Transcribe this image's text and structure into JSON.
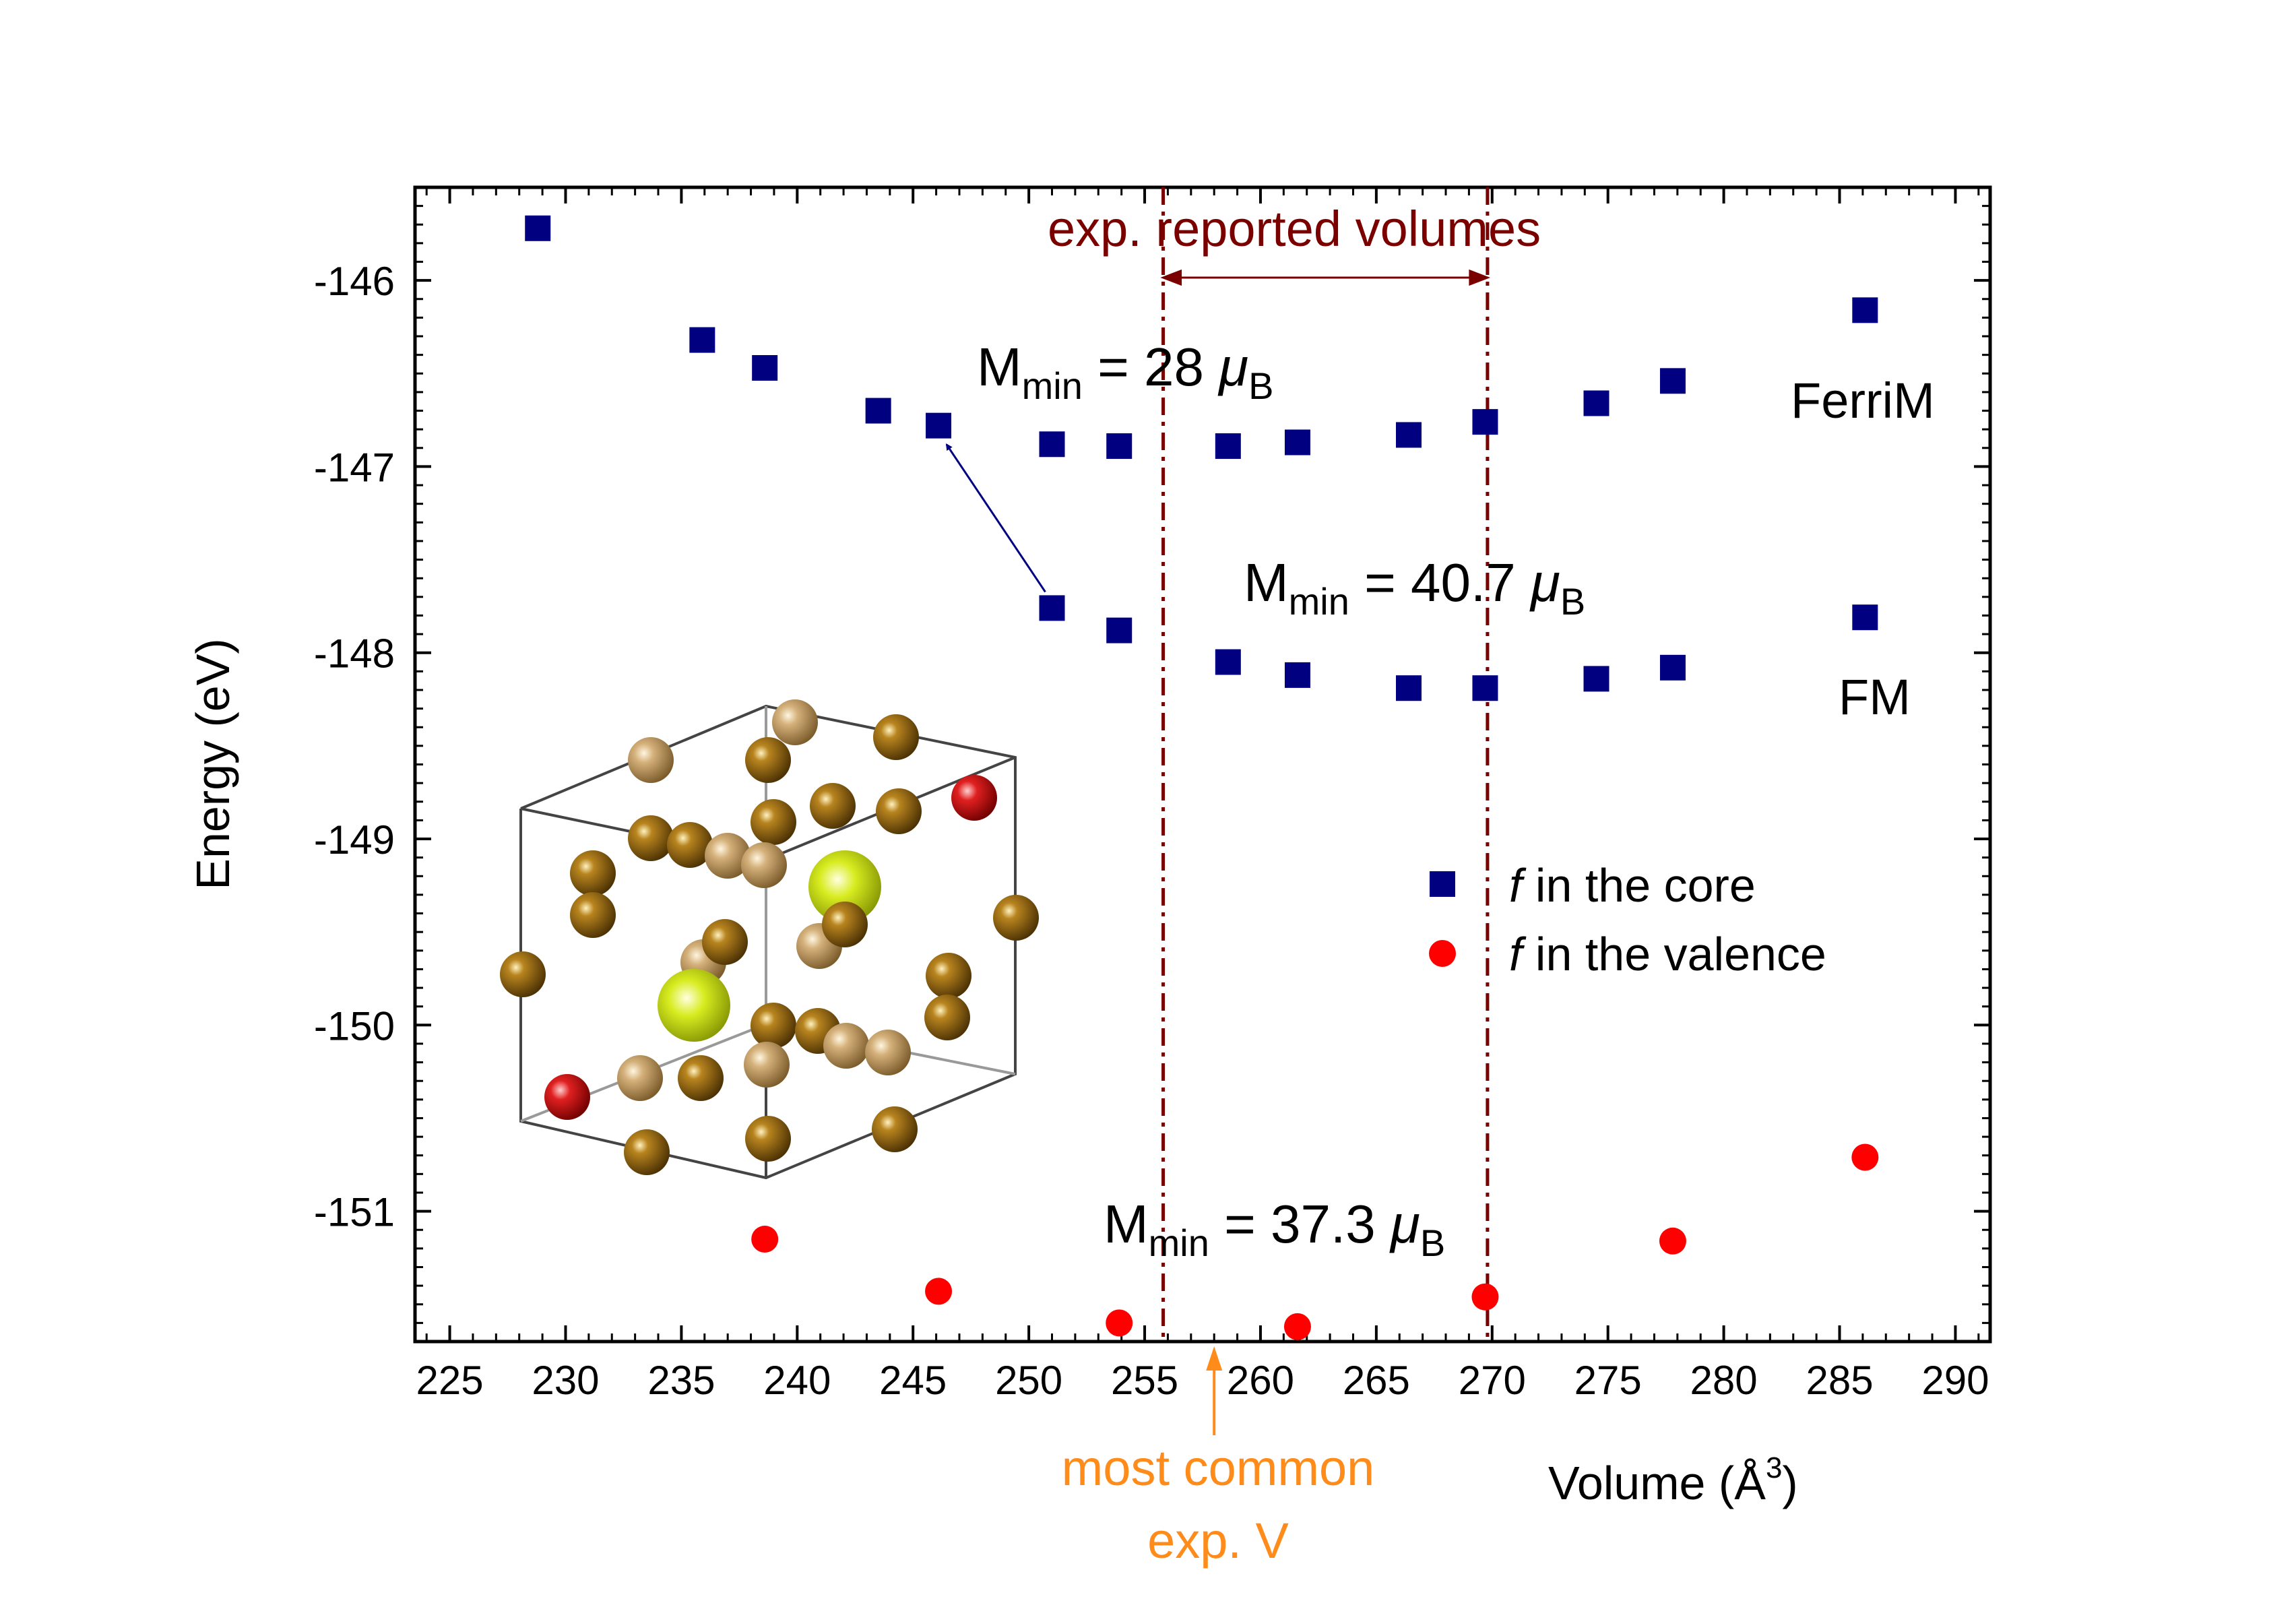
{
  "chart_data": {
    "type": "scatter",
    "title": "",
    "xlabel": "Volume (Å",
    "xlabel_sup": "3",
    "xlabel_close": ")",
    "ylabel": "Energy (eV)",
    "xlim": [
      223.5,
      291.5
    ],
    "ylim": [
      -151.7,
      -145.5
    ],
    "x_ticks": [
      225,
      230,
      235,
      240,
      245,
      250,
      255,
      260,
      265,
      270,
      275,
      280,
      285,
      290
    ],
    "y_ticks": [
      -146,
      -147,
      -148,
      -149,
      -150,
      -151
    ],
    "series": [
      {
        "name": "f in the core (FerriM)",
        "marker": "square",
        "color": "#000080",
        "points": [
          {
            "x": 228.8,
            "y": -145.72
          },
          {
            "x": 235.9,
            "y": -146.32
          },
          {
            "x": 238.6,
            "y": -146.47
          },
          {
            "x": 243.5,
            "y": -146.7
          },
          {
            "x": 246.1,
            "y": -146.78
          },
          {
            "x": 251.0,
            "y": -146.88
          },
          {
            "x": 253.9,
            "y": -146.89
          },
          {
            "x": 258.6,
            "y": -146.89
          },
          {
            "x": 261.6,
            "y": -146.87
          },
          {
            "x": 266.4,
            "y": -146.83
          },
          {
            "x": 269.7,
            "y": -146.76
          },
          {
            "x": 274.5,
            "y": -146.66
          },
          {
            "x": 277.8,
            "y": -146.54
          },
          {
            "x": 286.1,
            "y": -146.16
          }
        ]
      },
      {
        "name": "f in the core (FM)",
        "marker": "square",
        "color": "#000080",
        "points": [
          {
            "x": 251.0,
            "y": -147.76
          },
          {
            "x": 253.9,
            "y": -147.88
          },
          {
            "x": 258.6,
            "y": -148.05
          },
          {
            "x": 261.6,
            "y": -148.12
          },
          {
            "x": 266.4,
            "y": -148.19
          },
          {
            "x": 269.7,
            "y": -148.19
          },
          {
            "x": 274.5,
            "y": -148.14
          },
          {
            "x": 277.8,
            "y": -148.08
          },
          {
            "x": 286.1,
            "y": -147.81
          }
        ]
      },
      {
        "name": "f in the valence",
        "marker": "circle",
        "color": "#ff0000",
        "points": [
          {
            "x": 238.6,
            "y": -151.15
          },
          {
            "x": 246.1,
            "y": -151.43
          },
          {
            "x": 253.9,
            "y": -151.6
          },
          {
            "x": 261.6,
            "y": -151.62
          },
          {
            "x": 269.7,
            "y": -151.46
          },
          {
            "x": 277.8,
            "y": -151.16
          },
          {
            "x": 286.1,
            "y": -150.71
          }
        ]
      }
    ],
    "exp_volume_range": [
      255.8,
      269.8
    ],
    "most_common_exp_v": 258.0,
    "arrow_transition": {
      "from": [
        251.0,
        -147.76
      ],
      "to": [
        246.1,
        -146.78
      ]
    }
  },
  "labels": {
    "exp_range": "exp. reported volumes",
    "most_common_line1": "most common",
    "most_common_line2": "exp. V",
    "ferrim": "FerriM",
    "fm": "FM",
    "m_min_prefix": "M",
    "m_min_sub": "min",
    "m1_value": " = 28 ",
    "m2_value": " = 40.7 ",
    "m3_value": " = 37.3 ",
    "mu_symbol": "μ",
    "mu_sub": "B",
    "legend_core_f": "f",
    "legend_core_rest": " in the core",
    "legend_valence_f": "f",
    "legend_valence_rest": " in the valence"
  },
  "colors": {
    "core": "#000080",
    "valence": "#ff0000",
    "exp_lines": "#7a0000",
    "most_common": "#ff8c1a",
    "atom_brown": "#8a5a0a",
    "atom_light": "#c4a064",
    "atom_red": "#d01010",
    "atom_yellow": "#c8dc10"
  }
}
